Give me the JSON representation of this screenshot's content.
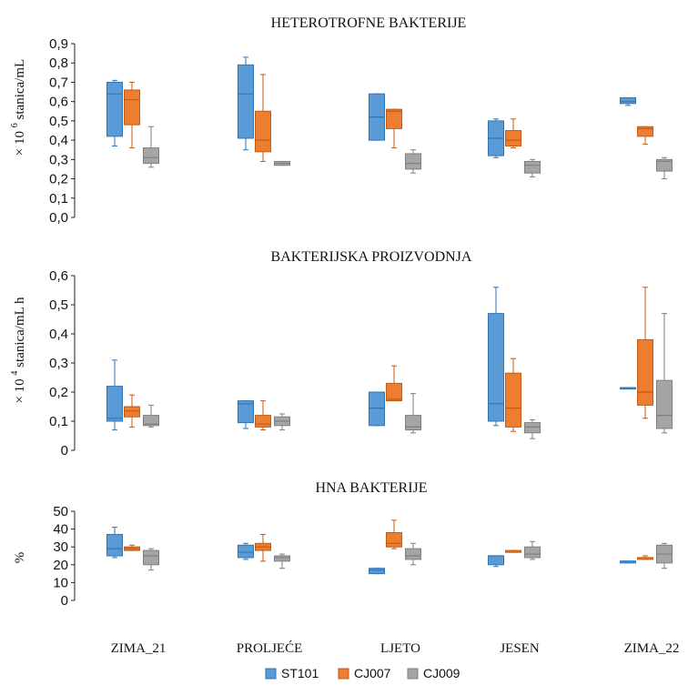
{
  "series_names": [
    "ST101",
    "CJ007",
    "CJ009"
  ],
  "colors": {
    "ST101": {
      "fill": "#5b9bd5",
      "stroke": "#2e75b6"
    },
    "CJ007": {
      "fill": "#ed7d31",
      "stroke": "#c55a11"
    },
    "CJ009": {
      "fill": "#a5a5a5",
      "stroke": "#7f7f7f"
    }
  },
  "chart_data": [
    {
      "type": "boxplot",
      "title": "HETEROTROFNE BAKTERIJE",
      "ylabel_prefix": "× 10",
      "ylabel_exp": "6",
      "ylabel_unit": "stanica/mL",
      "ylim": [
        0,
        0.9
      ],
      "yticks": [
        "0,0",
        "0,1",
        "0,2",
        "0,3",
        "0,4",
        "0,5",
        "0,6",
        "0,7",
        "0,8",
        "0,9"
      ],
      "categories": [
        "ZIMA_21",
        "PROLJEĆE",
        "LJETO",
        "JESEN",
        "ZIMA_22"
      ],
      "series": [
        {
          "name": "ST101",
          "boxes": [
            {
              "min": 0.37,
              "q1": 0.42,
              "median": 0.64,
              "q3": 0.7,
              "max": 0.71
            },
            {
              "min": 0.35,
              "q1": 0.41,
              "median": 0.64,
              "q3": 0.79,
              "max": 0.83
            },
            {
              "min": 0.4,
              "q1": 0.4,
              "median": 0.52,
              "q3": 0.64,
              "max": 0.64
            },
            {
              "min": 0.31,
              "q1": 0.32,
              "median": 0.41,
              "q3": 0.5,
              "max": 0.51
            },
            {
              "min": 0.58,
              "q1": 0.59,
              "median": 0.6,
              "q3": 0.62,
              "max": 0.62
            }
          ]
        },
        {
          "name": "CJ007",
          "boxes": [
            {
              "min": 0.36,
              "q1": 0.48,
              "median": 0.61,
              "q3": 0.66,
              "max": 0.7
            },
            {
              "min": 0.29,
              "q1": 0.34,
              "median": 0.4,
              "q3": 0.55,
              "max": 0.74
            },
            {
              "min": 0.36,
              "q1": 0.46,
              "median": 0.55,
              "q3": 0.56,
              "max": 0.56
            },
            {
              "min": 0.36,
              "q1": 0.37,
              "median": 0.4,
              "q3": 0.45,
              "max": 0.51
            },
            {
              "min": 0.38,
              "q1": 0.42,
              "median": 0.46,
              "q3": 0.47,
              "max": 0.47
            }
          ]
        },
        {
          "name": "CJ009",
          "boxes": [
            {
              "min": 0.26,
              "q1": 0.28,
              "median": 0.31,
              "q3": 0.36,
              "max": 0.47
            },
            {
              "min": 0.27,
              "q1": 0.27,
              "median": 0.28,
              "q3": 0.29,
              "max": 0.29
            },
            {
              "min": 0.23,
              "q1": 0.25,
              "median": 0.28,
              "q3": 0.33,
              "max": 0.35
            },
            {
              "min": 0.21,
              "q1": 0.23,
              "median": 0.27,
              "q3": 0.29,
              "max": 0.3
            },
            {
              "min": 0.2,
              "q1": 0.24,
              "median": 0.29,
              "q3": 0.3,
              "max": 0.31
            }
          ]
        }
      ]
    },
    {
      "type": "boxplot",
      "title": "BAKTERIJSKA PROIZVODNJA",
      "ylabel_prefix": "× 10",
      "ylabel_exp": "4",
      "ylabel_unit": "stanica/mL h",
      "ylim": [
        0,
        0.6
      ],
      "yticks": [
        "0",
        "0,1",
        "0,2",
        "0,3",
        "0,4",
        "0,5",
        "0,6"
      ],
      "categories": [
        "ZIMA_21",
        "PROLJEĆE",
        "LJETO",
        "JESEN",
        "ZIMA_22"
      ],
      "series": [
        {
          "name": "ST101",
          "boxes": [
            {
              "min": 0.07,
              "q1": 0.1,
              "median": 0.11,
              "q3": 0.22,
              "max": 0.31
            },
            {
              "min": 0.075,
              "q1": 0.095,
              "median": 0.16,
              "q3": 0.17,
              "max": 0.17
            },
            {
              "min": 0.085,
              "q1": 0.085,
              "median": 0.145,
              "q3": 0.2,
              "max": 0.2
            },
            {
              "min": 0.085,
              "q1": 0.1,
              "median": 0.16,
              "q3": 0.47,
              "max": 0.56
            },
            {
              "min": 0.215,
              "q1": 0.215,
              "median": 0.215,
              "q3": 0.215,
              "max": 0.215
            }
          ]
        },
        {
          "name": "CJ007",
          "boxes": [
            {
              "min": 0.08,
              "q1": 0.115,
              "median": 0.135,
              "q3": 0.15,
              "max": 0.19
            },
            {
              "min": 0.07,
              "q1": 0.08,
              "median": 0.09,
              "q3": 0.12,
              "max": 0.17
            },
            {
              "min": 0.17,
              "q1": 0.17,
              "median": 0.175,
              "q3": 0.23,
              "max": 0.29
            },
            {
              "min": 0.065,
              "q1": 0.08,
              "median": 0.145,
              "q3": 0.265,
              "max": 0.315
            },
            {
              "min": 0.11,
              "q1": 0.155,
              "median": 0.2,
              "q3": 0.38,
              "max": 0.56
            }
          ]
        },
        {
          "name": "CJ009",
          "boxes": [
            {
              "min": 0.08,
              "q1": 0.085,
              "median": 0.09,
              "q3": 0.12,
              "max": 0.155
            },
            {
              "min": 0.07,
              "q1": 0.085,
              "median": 0.1,
              "q3": 0.115,
              "max": 0.125
            },
            {
              "min": 0.06,
              "q1": 0.07,
              "median": 0.08,
              "q3": 0.12,
              "max": 0.195
            },
            {
              "min": 0.04,
              "q1": 0.06,
              "median": 0.08,
              "q3": 0.095,
              "max": 0.105
            },
            {
              "min": 0.06,
              "q1": 0.075,
              "median": 0.12,
              "q3": 0.24,
              "max": 0.47
            }
          ]
        }
      ]
    },
    {
      "type": "boxplot",
      "title": "HNA BAKTERIJE",
      "ylabel": "%",
      "ylim": [
        0,
        50
      ],
      "yticks": [
        "0",
        "10",
        "20",
        "30",
        "40",
        "50"
      ],
      "categories": [
        "ZIMA_21",
        "PROLJEĆE",
        "LJETO",
        "JESEN",
        "ZIMA_22"
      ],
      "series": [
        {
          "name": "ST101",
          "boxes": [
            {
              "min": 24,
              "q1": 25,
              "median": 29,
              "q3": 37,
              "max": 41
            },
            {
              "min": 23,
              "q1": 24,
              "median": 27,
              "q3": 31,
              "max": 32
            },
            {
              "min": 15,
              "q1": 15,
              "median": 17,
              "q3": 18,
              "max": 18
            },
            {
              "min": 19,
              "q1": 20,
              "median": 25,
              "q3": 25,
              "max": 25
            },
            {
              "min": 21,
              "q1": 21,
              "median": 22,
              "q3": 22,
              "max": 22
            }
          ]
        },
        {
          "name": "CJ007",
          "boxes": [
            {
              "min": 28,
              "q1": 28,
              "median": 29,
              "q3": 30,
              "max": 31
            },
            {
              "min": 22,
              "q1": 28,
              "median": 30,
              "q3": 32,
              "max": 37
            },
            {
              "min": 29,
              "q1": 30,
              "median": 32,
              "q3": 38,
              "max": 45
            },
            {
              "min": 27,
              "q1": 27,
              "median": 27,
              "q3": 28,
              "max": 28
            },
            {
              "min": 23,
              "q1": 23,
              "median": 24,
              "q3": 24,
              "max": 25
            }
          ]
        },
        {
          "name": "CJ009",
          "boxes": [
            {
              "min": 17,
              "q1": 20,
              "median": 25,
              "q3": 28,
              "max": 29
            },
            {
              "min": 18,
              "q1": 22,
              "median": 24,
              "q3": 25,
              "max": 26
            },
            {
              "min": 20,
              "q1": 23,
              "median": 25,
              "q3": 29,
              "max": 32
            },
            {
              "min": 23,
              "q1": 24,
              "median": 26,
              "q3": 30,
              "max": 33
            },
            {
              "min": 18,
              "q1": 21,
              "median": 26,
              "q3": 31,
              "max": 32
            }
          ]
        }
      ]
    }
  ]
}
